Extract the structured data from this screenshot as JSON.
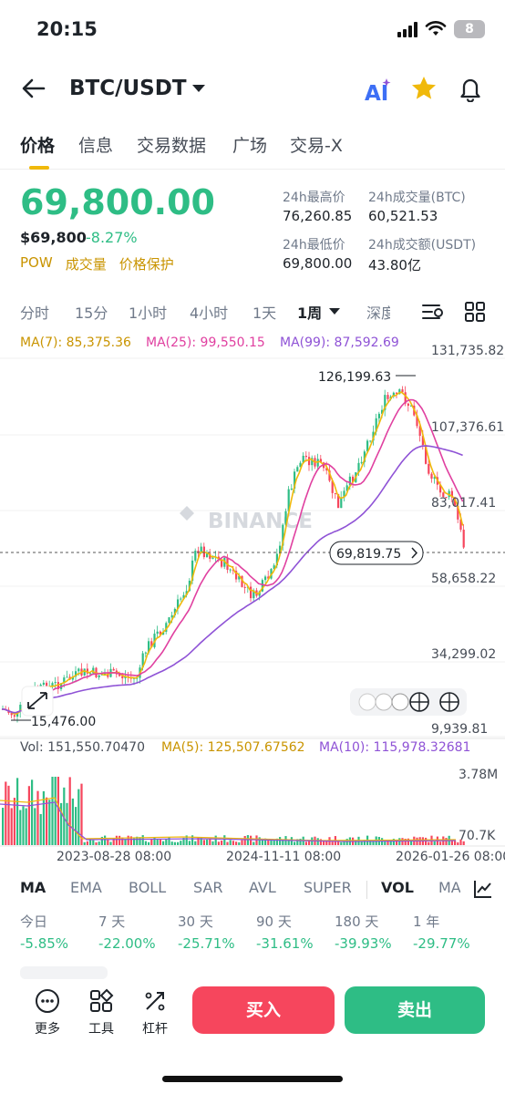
{
  "status": {
    "time": "20:15",
    "battery": "8"
  },
  "nav": {
    "title": "BTC/USDT"
  },
  "tabs": [
    "价格",
    "信息",
    "交易数据",
    "广场",
    "交易-X"
  ],
  "price": {
    "last": "69,800.00",
    "usd": "$69,800",
    "change": "-8.27%",
    "badges": [
      "POW",
      "成交量",
      "价格保护"
    ]
  },
  "stats": {
    "high_label": "24h最高价",
    "high": "76,260.85",
    "vol_btc_label": "24h成交量(BTC)",
    "vol_btc": "60,521.53",
    "low_label": "24h最低价",
    "low": "69,800.00",
    "vol_usdt_label": "24h成交额(USDT)",
    "vol_usdt": "43.80亿"
  },
  "intervals": [
    "分时",
    "15分",
    "1小时",
    "4小时",
    "1天",
    "1周",
    "深度"
  ],
  "ma_legend": {
    "ma7": "MA(7): 85,375.36",
    "ma25": "MA(25): 99,550.15",
    "ma99": "MA(99): 87,592.69"
  },
  "price_axis": [
    "131,735.82",
    "107,376.61",
    "83,017.41",
    "58,658.22",
    "34,299.02",
    "9,939.81"
  ],
  "annotations": {
    "high": "126,199.63",
    "low": "15,476.00",
    "last": "69,819.75",
    "watermark": "BINANCE"
  },
  "vol_legend": {
    "vol": "Vol: 151,550.70470",
    "ma5": "MA(5): 125,507.67562",
    "ma10": "MA(10): 115,978.32681"
  },
  "vol_axis": [
    "3.78M",
    "70.7K"
  ],
  "dates": [
    "2023-08-28 08:00",
    "2024-11-11 08:00",
    "2026-01-26 08:00"
  ],
  "indicators": [
    "MA",
    "EMA",
    "BOLL",
    "SAR",
    "AVL",
    "SUPER",
    "VOL",
    "MACD"
  ],
  "performance": [
    {
      "label": "今日",
      "value": "-5.85%"
    },
    {
      "label": "7 天",
      "value": "-22.00%"
    },
    {
      "label": "30 天",
      "value": "-25.71%"
    },
    {
      "label": "90 天",
      "value": "-31.61%"
    },
    {
      "label": "180 天",
      "value": "-39.93%"
    },
    {
      "label": "1 年",
      "value": "-29.77%"
    }
  ],
  "tools": [
    "更多",
    "工具",
    "杠杆"
  ],
  "actions": {
    "buy": "买入",
    "sell": "卖出"
  },
  "colors": {
    "up": "#2ebd85",
    "down": "#f6465d",
    "ma7": "#f0b90b",
    "ma25": "#e040a0",
    "ma99": "#8f53d6",
    "accent": "#f0b90b"
  }
}
